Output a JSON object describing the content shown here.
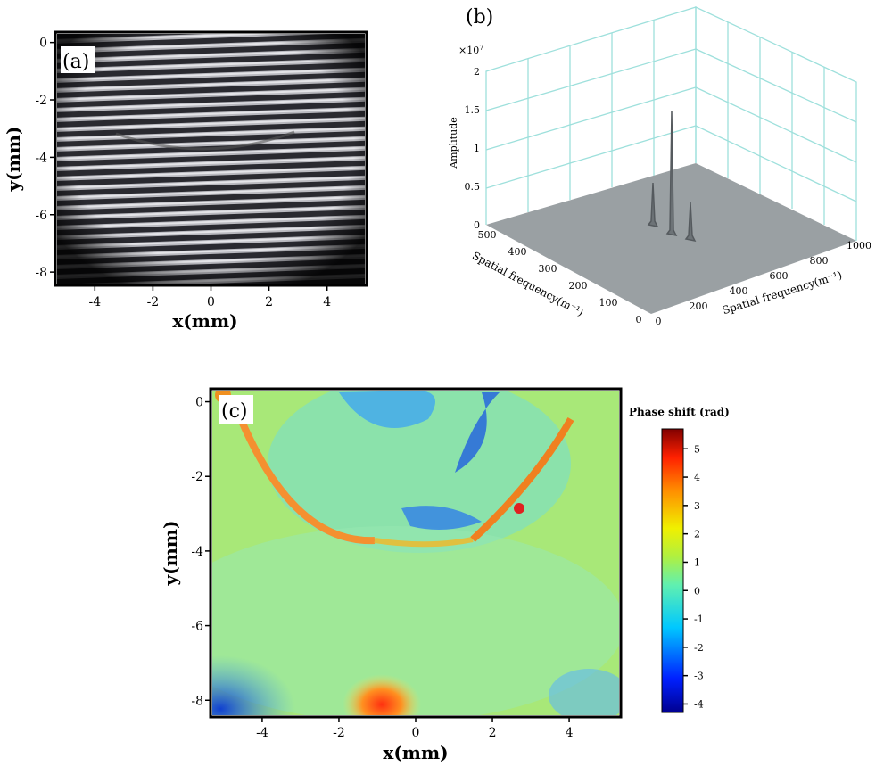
{
  "panels": {
    "a": {
      "label": "(a)",
      "xlabel": "x(mm)",
      "ylabel": "y(mm)",
      "xticks": [
        "-4",
        "-2",
        "0",
        "2",
        "4"
      ],
      "yticks": [
        "0",
        "-2",
        "-4",
        "-6",
        "-8"
      ]
    },
    "b": {
      "label": "(b)",
      "zlabel": "Amplitude",
      "zscale": "×10",
      "zscale_exp": "7",
      "zticks": [
        "0",
        "0.5",
        "1",
        "1.5",
        "2"
      ],
      "yticks": [
        "0",
        "100",
        "200",
        "300",
        "400",
        "500"
      ],
      "xticks": [
        "0",
        "200",
        "400",
        "600",
        "800",
        "1000"
      ],
      "ylabel": "Spatial frequency(m⁻¹)",
      "xlabel": "Spatial frequency(m⁻¹)"
    },
    "c": {
      "label": "(c)",
      "xlabel": "x(mm)",
      "ylabel": "y(mm)",
      "xticks": [
        "-4",
        "-2",
        "0",
        "2",
        "4"
      ],
      "yticks": [
        "0",
        "-2",
        "-4",
        "-6",
        "-8"
      ],
      "colorbar_title": "Phase shift (rad)",
      "colorbar_ticks": [
        "5",
        "4",
        "3",
        "2",
        "1",
        "0",
        "-1",
        "-2",
        "-3",
        "-4"
      ]
    }
  },
  "chart_data": [
    {
      "type": "heatmap",
      "panel": "a",
      "description_free": true,
      "xlim": [
        -5.3,
        5.3
      ],
      "ylim": [
        -8.4,
        0.3
      ]
    },
    {
      "type": "surface3d",
      "panel": "b",
      "xlim": [
        0,
        1000
      ],
      "ylim": [
        0,
        500
      ],
      "zlim": [
        0,
        2
      ],
      "peaks": [
        {
          "x": 500,
          "y": 250,
          "z": 1.5
        },
        {
          "x": 650,
          "y": 250,
          "z": 0.5
        },
        {
          "x": 350,
          "y": 250,
          "z": 0.5
        }
      ]
    },
    {
      "type": "heatmap",
      "panel": "c",
      "xlim": [
        -5.3,
        5.3
      ],
      "ylim": [
        -8.4,
        0.3
      ],
      "colorbar_range": [
        -4.3,
        5.7
      ]
    }
  ]
}
